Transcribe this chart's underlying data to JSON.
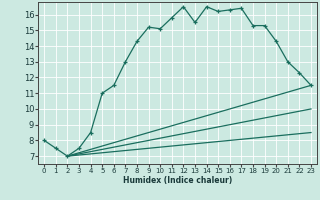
{
  "xlabel": "Humidex (Indice chaleur)",
  "xlim": [
    -0.5,
    23.5
  ],
  "ylim": [
    6.5,
    16.8
  ],
  "yticks": [
    7,
    8,
    9,
    10,
    11,
    12,
    13,
    14,
    15,
    16
  ],
  "xticks": [
    0,
    1,
    2,
    3,
    4,
    5,
    6,
    7,
    8,
    9,
    10,
    11,
    12,
    13,
    14,
    15,
    16,
    17,
    18,
    19,
    20,
    21,
    22,
    23
  ],
  "background_color": "#cce9e1",
  "grid_color": "#ffffff",
  "line_color": "#1a6e5e",
  "curves": [
    {
      "x": [
        0,
        1,
        2,
        3,
        4,
        5,
        6,
        7,
        8,
        9,
        10,
        11,
        12,
        13,
        14,
        15,
        16,
        17,
        18,
        19,
        20,
        21,
        22,
        23
      ],
      "y": [
        8.0,
        7.5,
        7.0,
        7.5,
        8.5,
        11.0,
        11.5,
        13.0,
        14.3,
        15.2,
        15.1,
        15.8,
        16.5,
        15.5,
        16.5,
        16.2,
        16.3,
        16.4,
        15.3,
        15.3,
        14.3,
        13.0,
        12.3,
        11.5
      ],
      "marker": true
    },
    {
      "x": [
        2,
        23
      ],
      "y": [
        7.0,
        11.5
      ],
      "marker": false
    },
    {
      "x": [
        2,
        23
      ],
      "y": [
        7.0,
        10.0
      ],
      "marker": false
    },
    {
      "x": [
        2,
        23
      ],
      "y": [
        7.0,
        8.5
      ],
      "marker": false
    }
  ]
}
